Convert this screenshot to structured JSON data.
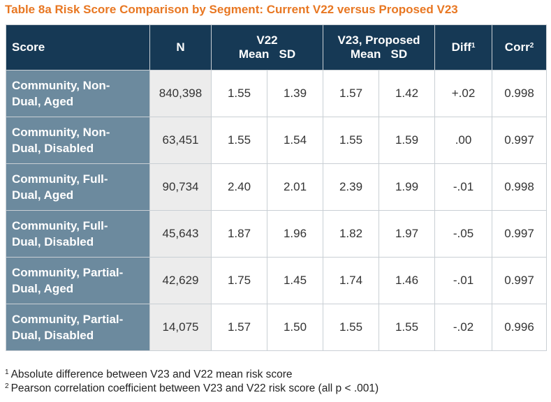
{
  "title": "Table 8a Risk Score Comparison by Segment: Current V22 versus Proposed V23",
  "header": {
    "score": "Score",
    "n": "N",
    "v22": "V22",
    "v22_sub": {
      "mean": "Mean",
      "sd": "SD"
    },
    "v23": "V23, Proposed",
    "v23_sub": {
      "mean": "Mean",
      "sd": "SD"
    },
    "diff": "Diff",
    "diff_sup": "1",
    "corr": "Corr",
    "corr_sup": "2"
  },
  "rows": [
    {
      "label_1": "Community, Non-",
      "label_2": "Dual, Aged",
      "n": "840,398",
      "v22_mean": "1.55",
      "v22_sd": "1.39",
      "v23_mean": "1.57",
      "v23_sd": "1.42",
      "diff": "+.02",
      "corr": "0.998"
    },
    {
      "label_1": "Community, Non-",
      "label_2": "Dual, Disabled",
      "n": "63,451",
      "v22_mean": "1.55",
      "v22_sd": "1.54",
      "v23_mean": "1.55",
      "v23_sd": "1.59",
      "diff": ".00",
      "corr": "0.997"
    },
    {
      "label_1": "Community, Full-",
      "label_2": "Dual, Aged",
      "n": "90,734",
      "v22_mean": "2.40",
      "v22_sd": "2.01",
      "v23_mean": "2.39",
      "v23_sd": "1.99",
      "diff": "-.01",
      "corr": "0.998"
    },
    {
      "label_1": "Community, Full-",
      "label_2": "Dual, Disabled",
      "n": "45,643",
      "v22_mean": "1.87",
      "v22_sd": "1.96",
      "v23_mean": "1.82",
      "v23_sd": "1.97",
      "diff": "-.05",
      "corr": "0.997"
    },
    {
      "label_1": "Community, Partial-",
      "label_2": "Dual, Aged",
      "n": "42,629",
      "v22_mean": "1.75",
      "v22_sd": "1.45",
      "v23_mean": "1.74",
      "v23_sd": "1.46",
      "diff": "-.01",
      "corr": "0.997"
    },
    {
      "label_1": "Community, Partial-",
      "label_2": "Dual, Disabled",
      "n": "14,075",
      "v22_mean": "1.57",
      "v22_sd": "1.50",
      "v23_mean": "1.55",
      "v23_sd": "1.55",
      "diff": "-.02",
      "corr": "0.996"
    }
  ],
  "footnotes": [
    {
      "marker": "1",
      "text": "Absolute difference between V23 and V22 mean risk score"
    },
    {
      "marker": "2",
      "text": "Pearson correlation coefficient between V23 and V22 risk score (all p < .001)"
    }
  ],
  "colors": {
    "title": "#E87722",
    "header_bg": "#163955",
    "label_bg": "#6c8a9e",
    "n_bg": "#ececec",
    "border": "#c9cfd4"
  }
}
